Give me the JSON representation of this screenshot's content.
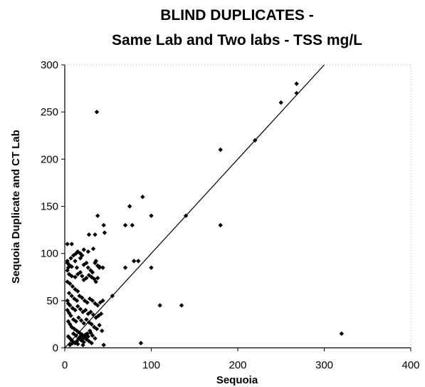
{
  "chart_data": {
    "type": "scatter",
    "title_line1": "BLIND DUPLICATES -",
    "title_line2": "Same Lab and Two labs - TSS mg/L",
    "xlabel": "Sequoia",
    "ylabel": "Sequoia Duplicate and  CT Lab",
    "xlim": [
      0,
      400
    ],
    "ylim": [
      0,
      300
    ],
    "xticks": [
      0,
      100,
      200,
      300,
      400
    ],
    "yticks": [
      0,
      50,
      100,
      150,
      200,
      250,
      300
    ],
    "grid": false,
    "legend": "none",
    "marker_color": "#000000",
    "reference_line": {
      "x": [
        0,
        300
      ],
      "y": [
        0,
        300
      ]
    },
    "points": [
      [
        3,
        110
      ],
      [
        8,
        110
      ],
      [
        3,
        92
      ],
      [
        3,
        90
      ],
      [
        5,
        88
      ],
      [
        8,
        86
      ],
      [
        12,
        92
      ],
      [
        14,
        85
      ],
      [
        18,
        95
      ],
      [
        20,
        98
      ],
      [
        22,
        88
      ],
      [
        25,
        90
      ],
      [
        27,
        85
      ],
      [
        30,
        82
      ],
      [
        32,
        80
      ],
      [
        35,
        90
      ],
      [
        36,
        92
      ],
      [
        38,
        87
      ],
      [
        40,
        86
      ],
      [
        44,
        85
      ],
      [
        45,
        130
      ],
      [
        46,
        122
      ],
      [
        28,
        120
      ],
      [
        35,
        120
      ],
      [
        38,
        140
      ],
      [
        33,
        105
      ],
      [
        27,
        102
      ],
      [
        22,
        104
      ],
      [
        18,
        100
      ],
      [
        15,
        102
      ],
      [
        13,
        100
      ],
      [
        10,
        98
      ],
      [
        7,
        95
      ],
      [
        4,
        85
      ],
      [
        3,
        82
      ],
      [
        5,
        78
      ],
      [
        8,
        76
      ],
      [
        12,
        75
      ],
      [
        15,
        78
      ],
      [
        18,
        80
      ],
      [
        20,
        76
      ],
      [
        22,
        72
      ],
      [
        25,
        74
      ],
      [
        28,
        77
      ],
      [
        31,
        75
      ],
      [
        34,
        73
      ],
      [
        36,
        70
      ],
      [
        38,
        74
      ],
      [
        3,
        70
      ],
      [
        6,
        68
      ],
      [
        9,
        65
      ],
      [
        12,
        62
      ],
      [
        15,
        60
      ],
      [
        5,
        58
      ],
      [
        8,
        55
      ],
      [
        11,
        52
      ],
      [
        14,
        50
      ],
      [
        17,
        55
      ],
      [
        20,
        53
      ],
      [
        23,
        50
      ],
      [
        26,
        48
      ],
      [
        29,
        52
      ],
      [
        32,
        50
      ],
      [
        35,
        47
      ],
      [
        38,
        45
      ],
      [
        41,
        48
      ],
      [
        44,
        50
      ],
      [
        3,
        50
      ],
      [
        4,
        47
      ],
      [
        6,
        45
      ],
      [
        9,
        42
      ],
      [
        12,
        40
      ],
      [
        15,
        44
      ],
      [
        18,
        41
      ],
      [
        21,
        38
      ],
      [
        24,
        40
      ],
      [
        27,
        36
      ],
      [
        30,
        38
      ],
      [
        33,
        35
      ],
      [
        36,
        32
      ],
      [
        39,
        34
      ],
      [
        42,
        36
      ],
      [
        3,
        40
      ],
      [
        5,
        37
      ],
      [
        7,
        34
      ],
      [
        10,
        30
      ],
      [
        13,
        28
      ],
      [
        16,
        32
      ],
      [
        19,
        29
      ],
      [
        22,
        26
      ],
      [
        25,
        30
      ],
      [
        28,
        27
      ],
      [
        31,
        25
      ],
      [
        34,
        22
      ],
      [
        37,
        20
      ],
      [
        40,
        24
      ],
      [
        43,
        18
      ],
      [
        4,
        28
      ],
      [
        6,
        25
      ],
      [
        8,
        22
      ],
      [
        11,
        20
      ],
      [
        14,
        18
      ],
      [
        17,
        16
      ],
      [
        20,
        14
      ],
      [
        23,
        12
      ],
      [
        26,
        15
      ],
      [
        29,
        18
      ],
      [
        32,
        13
      ],
      [
        35,
        10
      ],
      [
        10,
        15
      ],
      [
        13,
        13
      ],
      [
        16,
        10
      ],
      [
        19,
        8
      ],
      [
        22,
        6
      ],
      [
        25,
        9
      ],
      [
        28,
        7
      ],
      [
        31,
        5
      ],
      [
        4,
        12
      ],
      [
        6,
        10
      ],
      [
        8,
        8
      ],
      [
        10,
        6
      ],
      [
        12,
        5
      ],
      [
        14,
        7
      ],
      [
        18,
        12
      ],
      [
        21,
        10
      ],
      [
        24,
        14
      ],
      [
        27,
        12
      ],
      [
        30,
        16
      ],
      [
        6,
        3
      ],
      [
        9,
        5
      ],
      [
        15,
        4
      ],
      [
        21,
        3
      ],
      [
        45,
        3
      ],
      [
        40,
        85
      ],
      [
        55,
        55
      ],
      [
        70,
        85
      ],
      [
        70,
        130
      ],
      [
        75,
        150
      ],
      [
        78,
        130
      ],
      [
        80,
        92
      ],
      [
        85,
        92
      ],
      [
        90,
        160
      ],
      [
        100,
        85
      ],
      [
        100,
        140
      ],
      [
        110,
        45
      ],
      [
        135,
        45
      ],
      [
        140,
        140
      ],
      [
        180,
        210
      ],
      [
        180,
        130
      ],
      [
        220,
        220
      ],
      [
        250,
        260
      ],
      [
        268,
        280
      ],
      [
        268,
        270
      ],
      [
        320,
        15
      ],
      [
        37,
        250
      ],
      [
        88,
        5
      ]
    ]
  }
}
